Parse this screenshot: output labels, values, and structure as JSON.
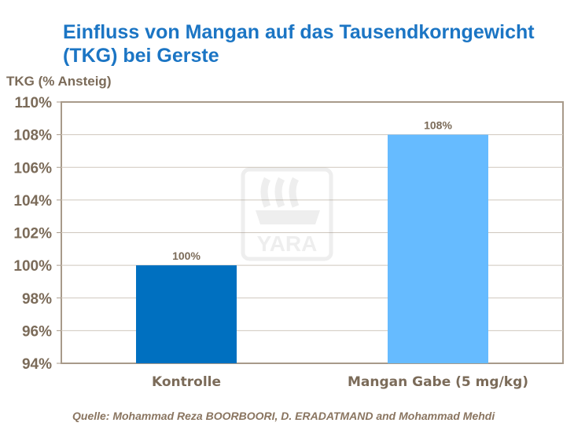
{
  "chart_data": {
    "type": "bar",
    "title": "Einfluss von Mangan auf das Tausendkorngewicht (TKG) bei Gerste",
    "ylabel": "TKG (% Ansteig)",
    "xlabel": "",
    "categories": [
      "Kontrolle",
      "Mangan Gabe (5 mg/kg)"
    ],
    "values": [
      100,
      108
    ],
    "data_labels": [
      "100%",
      "108%"
    ],
    "bar_colors": [
      "#0070c0",
      "#66bbff"
    ],
    "ylim": [
      94,
      110
    ],
    "yticks": [
      "94%",
      "96%",
      "98%",
      "100%",
      "102%",
      "104%",
      "106%",
      "108%",
      "110%"
    ],
    "grid": true,
    "legend": "none"
  },
  "source": "Quelle: Mohammad Reza BOORBOORI, D. ERADATMAND and Mohammad Mehdi",
  "watermark": "YARA",
  "colors": {
    "title": "#1b75c4",
    "text": "#7b6b59",
    "axis": "#a89a8a",
    "grid": "#cfc7bd"
  }
}
